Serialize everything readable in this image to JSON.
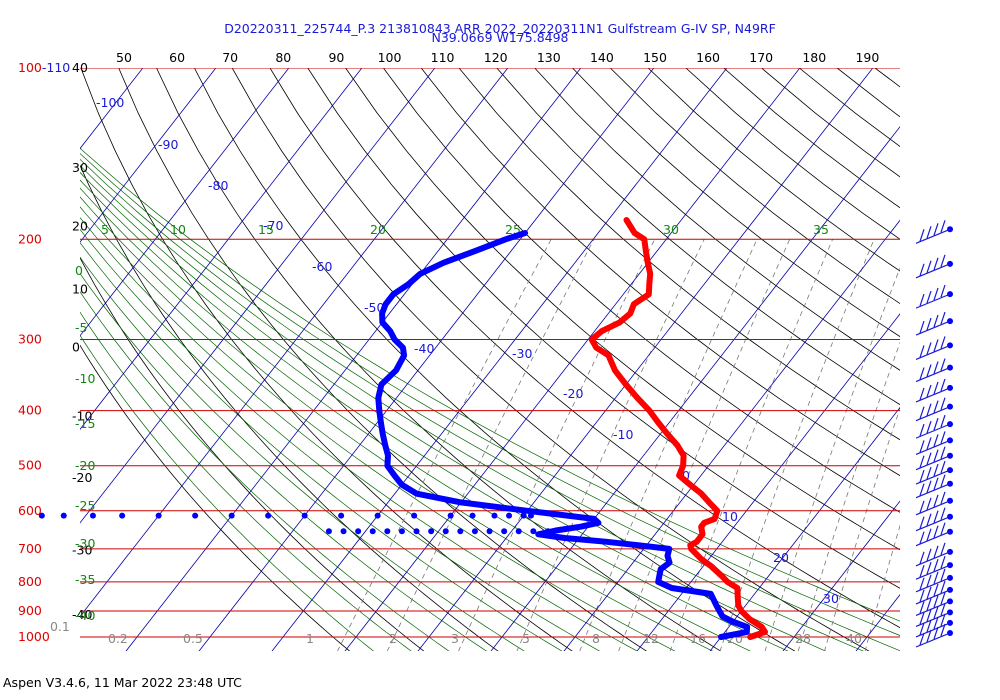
{
  "title_line1": "D20220311_225744_P.3 213810843 ARR 2022_20220311N1 Gulfstream G-IV SP, N49RF",
  "title_line2": "N39.0669 W175.8498",
  "footer": "Aspen V3.4.6, 11 Mar 2022  23:48 UTC",
  "colors": {
    "temperature": "#ff0000",
    "dewpoint": "#0000ff",
    "isobar": "#cc0000",
    "isotherm": "#0000aa",
    "dry_adiabat": "#000000",
    "moist_adiabat": "#006600",
    "mixing_ratio": "#777777"
  },
  "chart_data": {
    "type": "line",
    "chart_kind": "Skew-T log-P sounding",
    "pressure_labels": [
      "100",
      "200",
      "300",
      "400",
      "500",
      "600",
      "700",
      "800",
      "900",
      "1000"
    ],
    "corner_label": "-110",
    "top_axis_labels": [
      "50",
      "60",
      "70",
      "80",
      "90",
      "100",
      "110",
      "120",
      "130",
      "140",
      "150",
      "160",
      "170",
      "180",
      "190"
    ],
    "left_scale_labels": [
      {
        "text": "40",
        "p": 100
      },
      {
        "text": "30",
        "p": 150
      },
      {
        "text": "20",
        "p": 190
      },
      {
        "text": "10",
        "p": 245
      },
      {
        "text": "0",
        "p": 310
      },
      {
        "text": "-10",
        "p": 410
      },
      {
        "text": "-20",
        "p": 525
      },
      {
        "text": "-30",
        "p": 705
      },
      {
        "text": "-40",
        "p": 915
      }
    ],
    "isotherm_labels": [
      "-100",
      "-90",
      "-80",
      "-70",
      "-60",
      "-50",
      "-40",
      "-30",
      "-20",
      "-10",
      "0",
      "10",
      "20",
      "30"
    ],
    "theta_e_labels": [
      "5",
      "10",
      "15",
      "20",
      "25",
      "30",
      "35"
    ],
    "left_edge_labels": [
      "0",
      "-5",
      "-10",
      "-15",
      "-20",
      "-25",
      "-30",
      "-35",
      "-40"
    ],
    "mixing_ratio_labels": [
      "0.1",
      "0.2",
      "0.5",
      "1",
      "2",
      "3",
      "5",
      "8",
      "12",
      "16",
      "20",
      "28",
      "40"
    ],
    "temperature_profile": [
      [
        1000,
        14.0
      ],
      [
        980,
        15.5
      ],
      [
        960,
        14.5
      ],
      [
        930,
        12.0
      ],
      [
        900,
        10.0
      ],
      [
        880,
        9.0
      ],
      [
        850,
        8.0
      ],
      [
        820,
        7.0
      ],
      [
        800,
        5.0
      ],
      [
        780,
        3.5
      ],
      [
        750,
        1.0
      ],
      [
        730,
        -1.0
      ],
      [
        700,
        -3.5
      ],
      [
        690,
        -4.0
      ],
      [
        680,
        -3.5
      ],
      [
        660,
        -3.5
      ],
      [
        640,
        -4.5
      ],
      [
        630,
        -4.5
      ],
      [
        620,
        -3.5
      ],
      [
        600,
        -4.0
      ],
      [
        580,
        -6.0
      ],
      [
        560,
        -8.0
      ],
      [
        540,
        -10.5
      ],
      [
        520,
        -13.0
      ],
      [
        500,
        -13.5
      ],
      [
        480,
        -14.5
      ],
      [
        460,
        -16.5
      ],
      [
        440,
        -19.0
      ],
      [
        420,
        -21.5
      ],
      [
        400,
        -24.0
      ],
      [
        380,
        -27.0
      ],
      [
        360,
        -30.0
      ],
      [
        340,
        -33.0
      ],
      [
        320,
        -35.5
      ],
      [
        310,
        -38.0
      ],
      [
        300,
        -39.5
      ],
      [
        290,
        -39.0
      ],
      [
        280,
        -37.5
      ],
      [
        270,
        -37.0
      ],
      [
        260,
        -37.5
      ],
      [
        250,
        -36.5
      ],
      [
        240,
        -37.5
      ],
      [
        230,
        -38.5
      ],
      [
        220,
        -40.0
      ],
      [
        210,
        -41.5
      ],
      [
        200,
        -43.0
      ],
      [
        195,
        -45.0
      ],
      [
        185,
        -47.5
      ]
    ],
    "dewpoint_profile": [
      [
        1000,
        10.0
      ],
      [
        980,
        13.0
      ],
      [
        960,
        12.5
      ],
      [
        940,
        10.0
      ],
      [
        920,
        8.0
      ],
      [
        900,
        7.0
      ],
      [
        880,
        6.0
      ],
      [
        860,
        5.0
      ],
      [
        840,
        4.0
      ],
      [
        820,
        -2.0
      ],
      [
        800,
        -4.5
      ],
      [
        780,
        -5.0
      ],
      [
        760,
        -5.5
      ],
      [
        740,
        -5.0
      ],
      [
        720,
        -6.0
      ],
      [
        700,
        -6.5
      ],
      [
        690,
        -11.0
      ],
      [
        680,
        -16.0
      ],
      [
        670,
        -22.0
      ],
      [
        660,
        -26.0
      ],
      [
        650,
        -24.0
      ],
      [
        640,
        -21.0
      ],
      [
        630,
        -19.0
      ],
      [
        620,
        -20.0
      ],
      [
        600,
        -30.0
      ],
      [
        580,
        -40.0
      ],
      [
        560,
        -47.0
      ],
      [
        540,
        -50.0
      ],
      [
        520,
        -52.0
      ],
      [
        500,
        -54.0
      ],
      [
        480,
        -55.0
      ],
      [
        460,
        -56.5
      ],
      [
        440,
        -58.0
      ],
      [
        420,
        -59.5
      ],
      [
        400,
        -61.0
      ],
      [
        380,
        -62.5
      ],
      [
        360,
        -63.5
      ],
      [
        340,
        -63.0
      ],
      [
        320,
        -63.5
      ],
      [
        310,
        -64.5
      ],
      [
        300,
        -66.5
      ],
      [
        290,
        -68.0
      ],
      [
        280,
        -70.0
      ],
      [
        270,
        -71.0
      ],
      [
        260,
        -71.5
      ],
      [
        250,
        -71.5
      ],
      [
        240,
        -70.5
      ],
      [
        230,
        -70.0
      ],
      [
        220,
        -68.0
      ],
      [
        210,
        -65.0
      ],
      [
        200,
        -62.0
      ],
      [
        195,
        -60.0
      ]
    ],
    "dry_outlier_dewpoints_610hPa": [
      -96,
      -93,
      -89,
      -85,
      -80,
      -75,
      -70,
      -65,
      -60,
      -55,
      -50,
      -45,
      -40,
      -37,
      -34,
      -32,
      -30,
      -29
    ],
    "dry_outlier_dewpoints_650hPa": [
      -55,
      -53,
      -51,
      -49,
      -47,
      -45,
      -43,
      -41,
      -39,
      -37,
      -35,
      -33,
      -31,
      -29,
      -27,
      -25
    ],
    "wind_barb_pressures": [
      200,
      230,
      260,
      290,
      320,
      350,
      380,
      410,
      440,
      470,
      500,
      530,
      560,
      600,
      640,
      680,
      720,
      760,
      800,
      840,
      880,
      920,
      960,
      1000
    ]
  }
}
